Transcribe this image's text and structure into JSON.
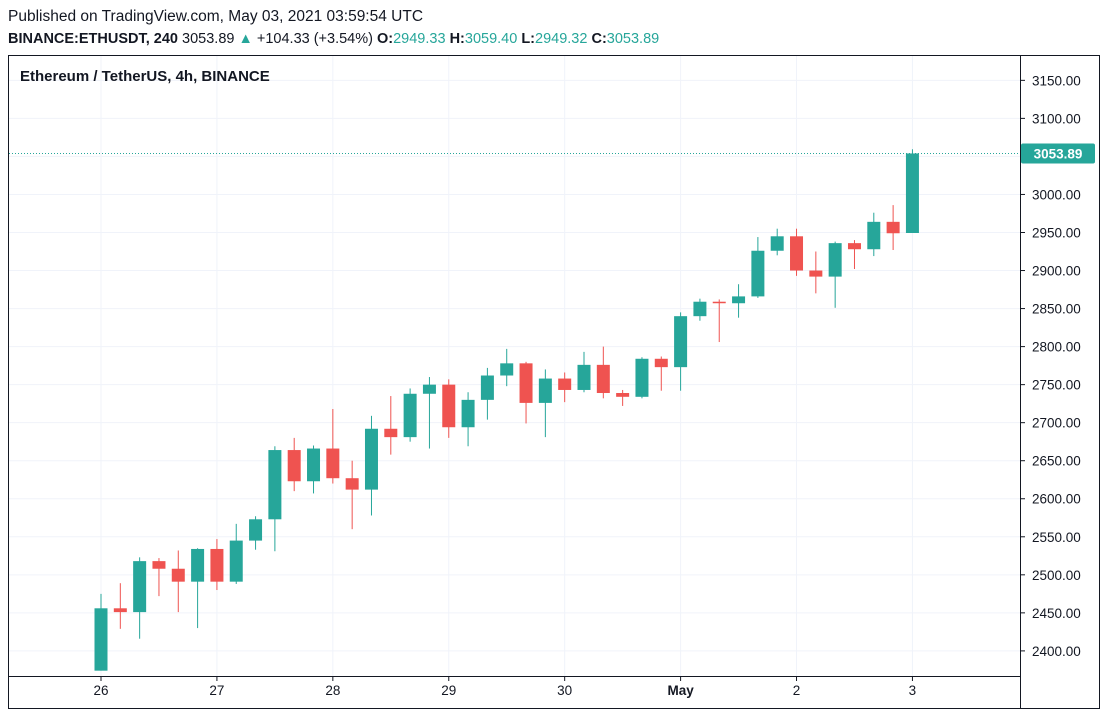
{
  "header": {
    "published": "Published on TradingView.com, May 03, 2021 03:59:54 UTC",
    "symbol": "BINANCE:ETHUSDT, 240",
    "last": "3053.89",
    "up_arrow": "▲",
    "change": "+104.33 (+3.54%)",
    "o_label": "O:",
    "o_value": "2949.33",
    "h_label": "H:",
    "h_value": "3059.40",
    "l_label": "L:",
    "l_value": "2949.32",
    "c_label": "C:",
    "c_value": "3053.89"
  },
  "colors": {
    "up": "#26a69a",
    "down": "#ef5350",
    "grid": "#f0f3fa",
    "border": "#131722",
    "text": "#131722"
  },
  "chart_data": {
    "type": "candlestick",
    "title": "Ethereum / TetherUS, 4h, BINANCE",
    "ylim": [
      2367,
      3182
    ],
    "y_ticks": [
      "2400.00",
      "2450.00",
      "2500.00",
      "2550.00",
      "2600.00",
      "2650.00",
      "2700.00",
      "2750.00",
      "2800.00",
      "2850.00",
      "2900.00",
      "2950.00",
      "3000.00",
      "3050.00",
      "3100.00",
      "3150.00"
    ],
    "x_ticks": [
      {
        "label": "26",
        "index": 0,
        "bold": false
      },
      {
        "label": "27",
        "index": 6,
        "bold": false
      },
      {
        "label": "28",
        "index": 12,
        "bold": false
      },
      {
        "label": "29",
        "index": 18,
        "bold": false
      },
      {
        "label": "30",
        "index": 24,
        "bold": false
      },
      {
        "label": "May",
        "index": 30,
        "bold": true
      },
      {
        "label": "2",
        "index": 36,
        "bold": false
      },
      {
        "label": "3",
        "index": 42,
        "bold": false
      }
    ],
    "last_price": 3053.89,
    "last_price_label": "3053.89",
    "grid": true,
    "candles": [
      {
        "o": 2374,
        "h": 2475,
        "l": 2374,
        "c": 2456
      },
      {
        "o": 2456,
        "h": 2489,
        "l": 2429,
        "c": 2451
      },
      {
        "o": 2451,
        "h": 2523,
        "l": 2416,
        "c": 2518
      },
      {
        "o": 2518,
        "h": 2522,
        "l": 2472,
        "c": 2508
      },
      {
        "o": 2508,
        "h": 2532,
        "l": 2451,
        "c": 2491
      },
      {
        "o": 2491,
        "h": 2535,
        "l": 2430,
        "c": 2534
      },
      {
        "o": 2534,
        "h": 2547,
        "l": 2480,
        "c": 2491
      },
      {
        "o": 2491,
        "h": 2567,
        "l": 2488,
        "c": 2545
      },
      {
        "o": 2545,
        "h": 2577,
        "l": 2533,
        "c": 2573
      },
      {
        "o": 2573,
        "h": 2669,
        "l": 2531,
        "c": 2664
      },
      {
        "o": 2664,
        "h": 2680,
        "l": 2610,
        "c": 2623
      },
      {
        "o": 2623,
        "h": 2670,
        "l": 2607,
        "c": 2666
      },
      {
        "o": 2666,
        "h": 2718,
        "l": 2620,
        "c": 2627
      },
      {
        "o": 2627,
        "h": 2650,
        "l": 2560,
        "c": 2612
      },
      {
        "o": 2612,
        "h": 2709,
        "l": 2578,
        "c": 2692
      },
      {
        "o": 2692,
        "h": 2735,
        "l": 2658,
        "c": 2681
      },
      {
        "o": 2681,
        "h": 2745,
        "l": 2675,
        "c": 2738
      },
      {
        "o": 2738,
        "h": 2760,
        "l": 2666,
        "c": 2750
      },
      {
        "o": 2750,
        "h": 2757,
        "l": 2680,
        "c": 2694
      },
      {
        "o": 2694,
        "h": 2740,
        "l": 2669,
        "c": 2730
      },
      {
        "o": 2730,
        "h": 2772,
        "l": 2704,
        "c": 2762
      },
      {
        "o": 2762,
        "h": 2797,
        "l": 2748,
        "c": 2778
      },
      {
        "o": 2778,
        "h": 2780,
        "l": 2699,
        "c": 2726
      },
      {
        "o": 2726,
        "h": 2770,
        "l": 2681,
        "c": 2758
      },
      {
        "o": 2758,
        "h": 2766,
        "l": 2727,
        "c": 2743
      },
      {
        "o": 2743,
        "h": 2793,
        "l": 2740,
        "c": 2776
      },
      {
        "o": 2776,
        "h": 2800,
        "l": 2732,
        "c": 2739
      },
      {
        "o": 2739,
        "h": 2743,
        "l": 2722,
        "c": 2734
      },
      {
        "o": 2734,
        "h": 2786,
        "l": 2732,
        "c": 2784
      },
      {
        "o": 2784,
        "h": 2787,
        "l": 2742,
        "c": 2773
      },
      {
        "o": 2773,
        "h": 2845,
        "l": 2742,
        "c": 2840
      },
      {
        "o": 2840,
        "h": 2863,
        "l": 2834,
        "c": 2859
      },
      {
        "o": 2859,
        "h": 2862,
        "l": 2806,
        "c": 2857
      },
      {
        "o": 2857,
        "h": 2882,
        "l": 2838,
        "c": 2866
      },
      {
        "o": 2866,
        "h": 2944,
        "l": 2864,
        "c": 2926
      },
      {
        "o": 2926,
        "h": 2955,
        "l": 2920,
        "c": 2945
      },
      {
        "o": 2945,
        "h": 2955,
        "l": 2893,
        "c": 2900
      },
      {
        "o": 2900,
        "h": 2925,
        "l": 2870,
        "c": 2892
      },
      {
        "o": 2892,
        "h": 2938,
        "l": 2851,
        "c": 2936
      },
      {
        "o": 2936,
        "h": 2940,
        "l": 2902,
        "c": 2928
      },
      {
        "o": 2928,
        "h": 2976,
        "l": 2919,
        "c": 2964
      },
      {
        "o": 2964,
        "h": 2986,
        "l": 2927,
        "c": 2949
      },
      {
        "o": 2949.33,
        "h": 3059.4,
        "l": 2949.32,
        "c": 3053.89
      }
    ]
  }
}
